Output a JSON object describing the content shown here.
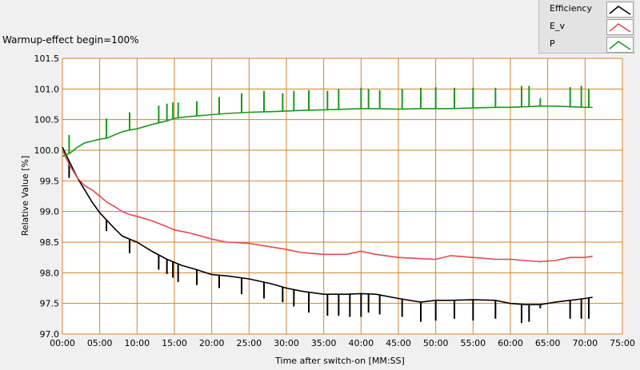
{
  "chart_data": {
    "type": "line",
    "title": "Warmup-effect begin=100%",
    "xlabel": "Time after switch-on [MM:SS]",
    "ylabel": "Relative Value [%]",
    "xlim": [
      0,
      75
    ],
    "ylim": [
      97.0,
      101.5
    ],
    "x_ticks": [
      0,
      5,
      10,
      15,
      20,
      25,
      30,
      35,
      40,
      45,
      50,
      55,
      60,
      65,
      70,
      75
    ],
    "x_tick_labels": [
      "00:00",
      "05:00",
      "10:00",
      "15:00",
      "20:00",
      "25:00",
      "30:00",
      "35:00",
      "40:00",
      "45:00",
      "50:00",
      "55:00",
      "60:00",
      "65:00",
      "70:00",
      "75:00"
    ],
    "y_ticks": [
      97.0,
      97.5,
      98.0,
      98.5,
      99.0,
      99.5,
      100.0,
      100.5,
      101.0,
      101.5
    ],
    "y_tick_labels": [
      "97.0",
      "97.5",
      "98.0",
      "98.5",
      "99.0",
      "99.5",
      "100.0",
      "100.5",
      "101.0",
      "101.5"
    ],
    "grid": true,
    "legend_position": "top-right",
    "series": [
      {
        "name": "Efficiency",
        "color": "#000000",
        "x": [
          0,
          1,
          2,
          3,
          4,
          5,
          6,
          7,
          8,
          9,
          10,
          12,
          14,
          16,
          18,
          20,
          22,
          25,
          28,
          30,
          32,
          35,
          38,
          40,
          42,
          45,
          48,
          50,
          52,
          55,
          58,
          60,
          62,
          64,
          66,
          68,
          70,
          71
        ],
        "values": [
          100.05,
          99.8,
          99.55,
          99.35,
          99.15,
          98.98,
          98.85,
          98.72,
          98.6,
          98.55,
          98.5,
          98.35,
          98.22,
          98.12,
          98.05,
          97.97,
          97.95,
          97.9,
          97.82,
          97.75,
          97.7,
          97.65,
          97.65,
          97.66,
          97.65,
          97.58,
          97.52,
          97.55,
          97.55,
          97.56,
          97.55,
          97.5,
          97.48,
          97.48,
          97.52,
          97.55,
          97.58,
          97.6
        ],
        "spike_x": [
          0.9,
          5.9,
          9.0,
          12.9,
          14.0,
          14.8,
          15.5,
          18.0,
          21.0,
          24.0,
          27.0,
          29.5,
          31.0,
          33.0,
          35.5,
          37.0,
          38.5,
          40.0,
          41.0,
          42.5,
          45.5,
          48.0,
          50.0,
          52.5,
          55.0,
          58.0,
          61.5,
          62.5,
          64.0,
          68.0,
          69.5,
          70.5
        ],
        "spike_y": [
          99.55,
          98.68,
          98.32,
          98.05,
          97.98,
          97.92,
          97.85,
          97.8,
          97.75,
          97.65,
          97.58,
          97.52,
          97.45,
          97.35,
          97.3,
          97.3,
          97.28,
          97.28,
          97.35,
          97.32,
          97.28,
          97.2,
          97.22,
          97.25,
          97.22,
          97.25,
          97.18,
          97.2,
          97.42,
          97.25,
          97.25,
          97.25
        ]
      },
      {
        "name": "E_v",
        "color": "#e8474c",
        "x": [
          0,
          1,
          2,
          3,
          4,
          5,
          6,
          7,
          8,
          9,
          10,
          12,
          14,
          15,
          17,
          18,
          20,
          22,
          25,
          28,
          30,
          32,
          35,
          38,
          40,
          42,
          45,
          48,
          50,
          52,
          55,
          58,
          60,
          62,
          64,
          66,
          68,
          70,
          71
        ],
        "values": [
          100.0,
          99.75,
          99.55,
          99.42,
          99.35,
          99.25,
          99.15,
          99.08,
          99.0,
          98.95,
          98.92,
          98.85,
          98.75,
          98.7,
          98.65,
          98.62,
          98.55,
          98.5,
          98.48,
          98.42,
          98.38,
          98.33,
          98.3,
          98.3,
          98.35,
          98.3,
          98.25,
          98.23,
          98.22,
          98.28,
          98.25,
          98.22,
          98.22,
          98.2,
          98.18,
          98.2,
          98.25,
          98.25,
          98.27
        ]
      },
      {
        "name": "P",
        "color": "#1a9a1a",
        "x": [
          0,
          1,
          2,
          3,
          4,
          5,
          6,
          7,
          8,
          9,
          10,
          12,
          14,
          15,
          17,
          20,
          22,
          25,
          28,
          30,
          32,
          35,
          38,
          40,
          42,
          45,
          48,
          50,
          52,
          55,
          58,
          60,
          62,
          64,
          66,
          68,
          70,
          71
        ],
        "values": [
          99.9,
          99.95,
          100.05,
          100.12,
          100.15,
          100.18,
          100.2,
          100.25,
          100.3,
          100.33,
          100.35,
          100.42,
          100.48,
          100.52,
          100.55,
          100.58,
          100.6,
          100.62,
          100.63,
          100.64,
          100.65,
          100.66,
          100.67,
          100.68,
          100.68,
          100.67,
          100.68,
          100.68,
          100.68,
          100.69,
          100.7,
          100.7,
          100.71,
          100.72,
          100.72,
          100.71,
          100.7,
          100.7
        ],
        "spike_x": [
          0.9,
          5.9,
          9.0,
          12.9,
          14.0,
          14.8,
          15.5,
          18.0,
          21.0,
          24.0,
          27.0,
          29.5,
          31.0,
          33.0,
          35.5,
          37.0,
          40.0,
          41.0,
          42.5,
          45.5,
          48.0,
          50.0,
          52.5,
          55.0,
          58.0,
          61.5,
          62.5,
          64.0,
          68.0,
          69.5,
          70.5
        ],
        "spike_y": [
          100.25,
          100.52,
          100.62,
          100.73,
          100.76,
          100.78,
          100.78,
          100.8,
          100.87,
          100.93,
          100.97,
          100.93,
          100.97,
          100.98,
          100.97,
          101.0,
          101.02,
          101.0,
          100.98,
          101.0,
          101.02,
          101.03,
          101.02,
          101.02,
          101.02,
          101.05,
          101.05,
          100.85,
          101.03,
          101.05,
          101.0
        ]
      }
    ]
  }
}
